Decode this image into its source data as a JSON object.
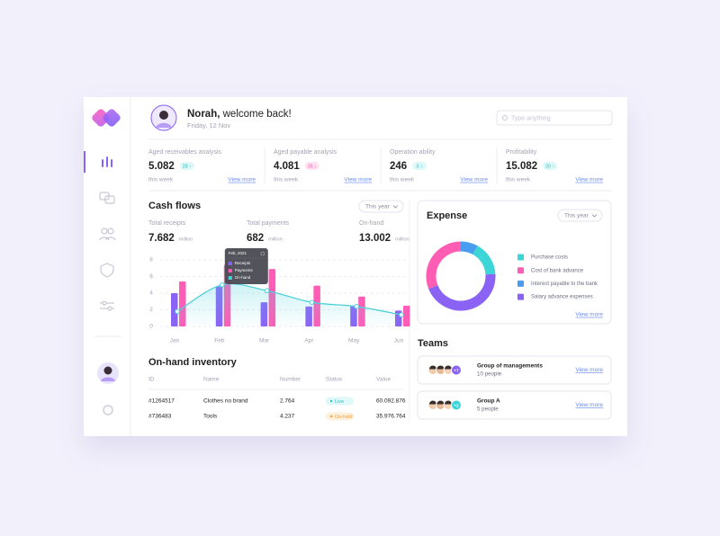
{
  "header": {
    "name": "Norah,",
    "greeting": "welcome back!",
    "date": "Friday, 12 Nov",
    "search_placeholder": "Type anything"
  },
  "stats": [
    {
      "label": "Aged receivables analysis",
      "value": "5.082",
      "badge": "28 ↑",
      "tone": "up",
      "period": "this week",
      "link": "View more"
    },
    {
      "label": "Aged payable analysis",
      "value": "4.081",
      "badge": "35 ↓",
      "tone": "down",
      "period": "this week",
      "link": "View more"
    },
    {
      "label": "Operation ability",
      "value": "246",
      "badge": "3 ↑",
      "tone": "up",
      "period": "this week",
      "link": "View more"
    },
    {
      "label": "Profitability",
      "value": "15.082",
      "badge": "20 ↑",
      "tone": "up",
      "period": "this week",
      "link": "View more"
    }
  ],
  "chart_data": [
    {
      "type": "bar",
      "title": "Cash flows",
      "period": "This year",
      "summary": [
        {
          "label": "Total receipts",
          "value": "7.682",
          "unit": "million"
        },
        {
          "label": "Total payments",
          "value": "682",
          "unit": "million"
        },
        {
          "label": "On-hand",
          "value": "13.002",
          "unit": "million"
        }
      ],
      "categories": [
        "Jan",
        "Feb",
        "Mar",
        "Apr",
        "May",
        "Jun"
      ],
      "series": [
        {
          "name": "Receipts",
          "color": "#8a63f5",
          "values": [
            4.0,
            4.8,
            2.9,
            2.4,
            2.5,
            1.9
          ]
        },
        {
          "name": "Payments",
          "color": "#ff5cb8",
          "values": [
            5.4,
            7.4,
            6.9,
            4.9,
            3.6,
            2.5
          ]
        },
        {
          "name": "On-hand",
          "color": "#4fd1d9",
          "type": "line",
          "values": [
            1.8,
            5.0,
            4.3,
            2.9,
            2.4,
            1.4
          ]
        }
      ],
      "ylim": [
        0,
        8
      ],
      "yticks": [
        0,
        2,
        4,
        6,
        8
      ],
      "grid": true,
      "tooltip": {
        "title": "Feb, 2021",
        "category": 1
      }
    },
    {
      "type": "pie",
      "donut": true,
      "title": "Expense",
      "period": "This year",
      "categories": [
        "Purchase costs",
        "Cost of bank advance",
        "Interest payable to the bank",
        "Salary advance expenses"
      ],
      "colors": [
        "#3dd5d8",
        "#ff5cb4",
        "#4a9cf0",
        "#8a63f5"
      ],
      "values": [
        16,
        31,
        8,
        45
      ],
      "link": "View more"
    }
  ],
  "teams": {
    "title": "Teams",
    "groups": [
      {
        "name": "Group of managements",
        "members": "10 people",
        "extra": "+7",
        "link": "View more"
      },
      {
        "name": "Group A",
        "members": "5 people",
        "extra": "+2",
        "link": "View more"
      }
    ]
  },
  "inventory": {
    "title": "On-hand inventory",
    "columns": [
      "ID",
      "Name",
      "Number",
      "Status",
      "Value"
    ],
    "rows": [
      [
        "#1264517",
        "Clothes no brand",
        "2.764",
        "Live",
        "60.092.876"
      ],
      [
        "#736483",
        "Tools",
        "4.237",
        "On-hold",
        "35.976.764"
      ]
    ]
  }
}
